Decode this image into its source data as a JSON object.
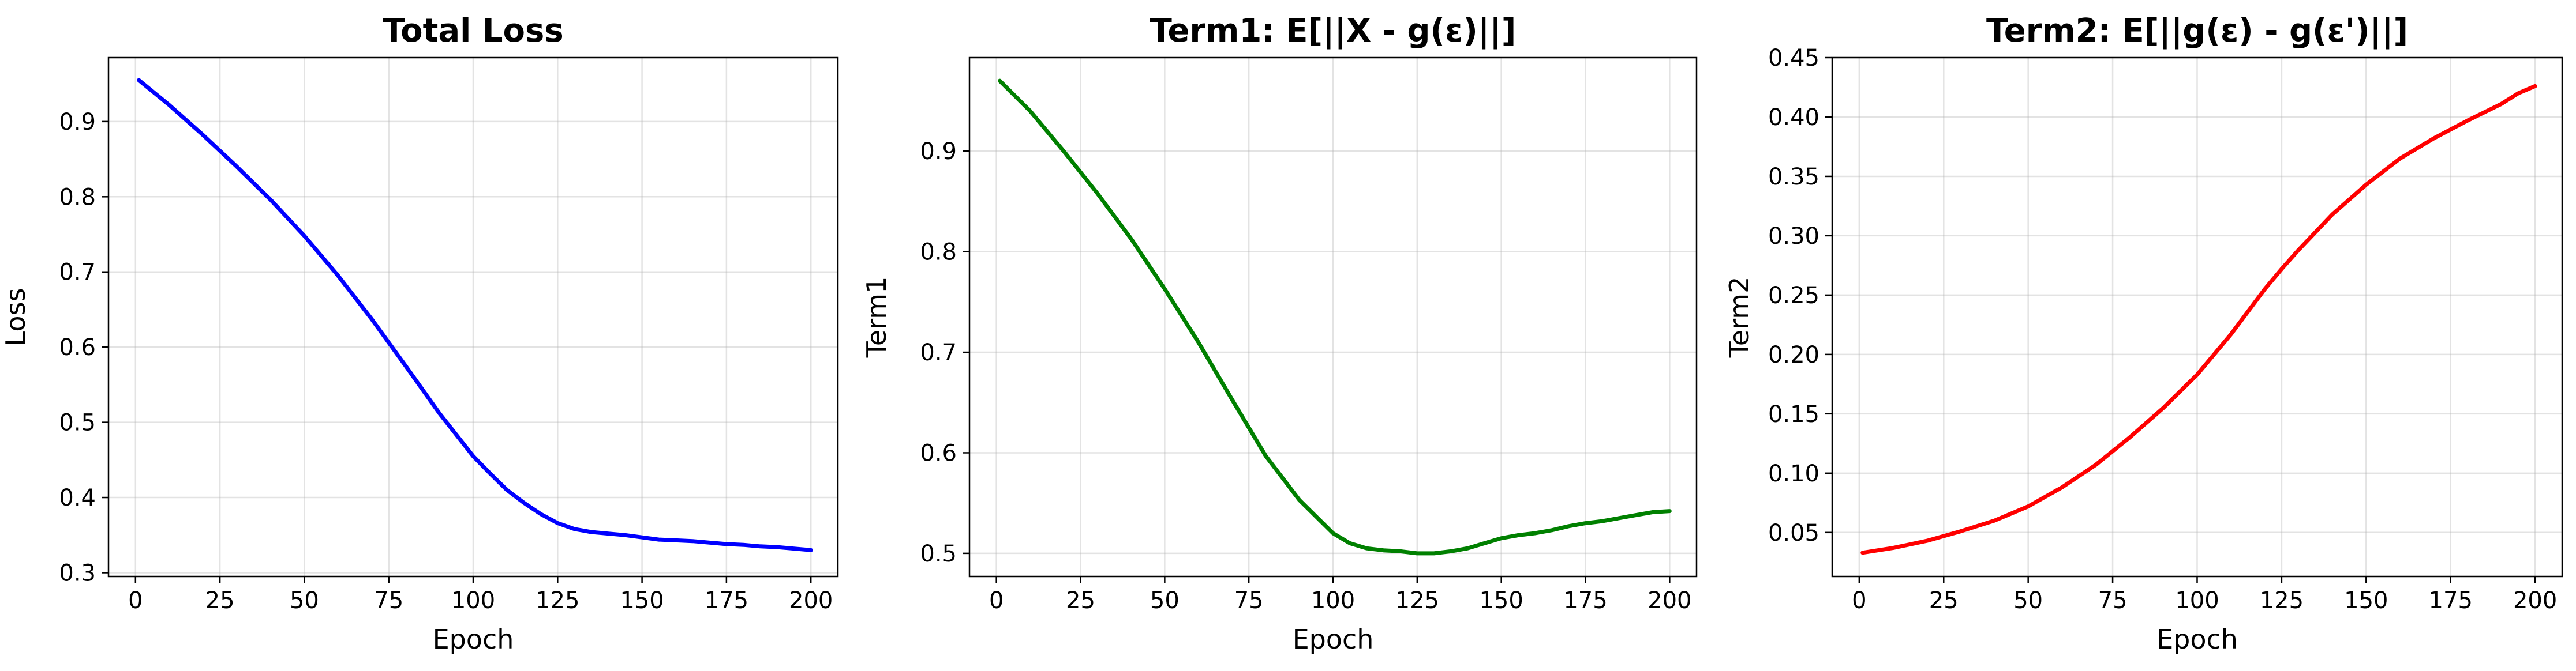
{
  "chart_data": [
    {
      "type": "line",
      "title": "Total Loss",
      "xlabel": "Epoch",
      "ylabel": "Loss",
      "xlim": [
        -8,
        208
      ],
      "ylim": [
        0.295,
        0.985
      ],
      "xticks": [
        0,
        25,
        50,
        75,
        100,
        125,
        150,
        175,
        200
      ],
      "yticks": [
        0.3,
        0.4,
        0.5,
        0.6,
        0.7,
        0.8,
        0.9
      ],
      "ytick_labels": [
        "0.3",
        "0.4",
        "0.5",
        "0.6",
        "0.7",
        "0.8",
        "0.9"
      ],
      "grid": true,
      "series": [
        {
          "color": "#0000ff",
          "x": [
            1,
            10,
            20,
            30,
            40,
            50,
            60,
            70,
            80,
            90,
            100,
            105,
            110,
            115,
            120,
            125,
            130,
            135,
            140,
            145,
            150,
            155,
            160,
            165,
            170,
            175,
            180,
            185,
            190,
            195,
            200
          ],
          "values": [
            0.955,
            0.922,
            0.882,
            0.84,
            0.796,
            0.748,
            0.695,
            0.637,
            0.575,
            0.512,
            0.455,
            0.432,
            0.41,
            0.393,
            0.378,
            0.366,
            0.358,
            0.354,
            0.352,
            0.35,
            0.347,
            0.344,
            0.343,
            0.342,
            0.34,
            0.338,
            0.337,
            0.335,
            0.334,
            0.332,
            0.33
          ]
        }
      ]
    },
    {
      "type": "line",
      "title": "Term1: E[||X - g(ε)||]",
      "xlabel": "Epoch",
      "ylabel": "Term1",
      "xlim": [
        -8,
        208
      ],
      "ylim": [
        0.477,
        0.993
      ],
      "xticks": [
        0,
        25,
        50,
        75,
        100,
        125,
        150,
        175,
        200
      ],
      "yticks": [
        0.5,
        0.6,
        0.7,
        0.8,
        0.9
      ],
      "ytick_labels": [
        "0.5",
        "0.6",
        "0.7",
        "0.8",
        "0.9"
      ],
      "grid": true,
      "series": [
        {
          "color": "#008000",
          "x": [
            1,
            10,
            20,
            30,
            40,
            50,
            60,
            70,
            80,
            90,
            100,
            105,
            110,
            115,
            120,
            125,
            130,
            135,
            140,
            145,
            150,
            155,
            160,
            165,
            170,
            175,
            180,
            185,
            190,
            195,
            200
          ],
          "values": [
            0.97,
            0.94,
            0.9,
            0.858,
            0.813,
            0.763,
            0.71,
            0.653,
            0.597,
            0.553,
            0.52,
            0.51,
            0.505,
            0.503,
            0.502,
            0.5,
            0.5,
            0.502,
            0.505,
            0.51,
            0.515,
            0.518,
            0.52,
            0.523,
            0.527,
            0.53,
            0.532,
            0.535,
            0.538,
            0.541,
            0.542
          ]
        }
      ]
    },
    {
      "type": "line",
      "title": "Term2: E[||g(ε) - g(ε')||]",
      "xlabel": "Epoch",
      "ylabel": "Term2",
      "xlim": [
        -8,
        208
      ],
      "ylim": [
        0.013,
        0.45
      ],
      "xticks": [
        0,
        25,
        50,
        75,
        100,
        125,
        150,
        175,
        200
      ],
      "yticks": [
        0.05,
        0.1,
        0.15,
        0.2,
        0.25,
        0.3,
        0.35,
        0.4,
        0.45
      ],
      "ytick_labels": [
        "0.05",
        "0.10",
        "0.15",
        "0.20",
        "0.25",
        "0.30",
        "0.35",
        "0.40",
        "0.45"
      ],
      "grid": true,
      "series": [
        {
          "color": "#ff0000",
          "x": [
            1,
            10,
            20,
            30,
            40,
            50,
            60,
            70,
            80,
            90,
            100,
            110,
            120,
            125,
            130,
            140,
            150,
            160,
            170,
            180,
            190,
            195,
            200
          ],
          "values": [
            0.033,
            0.037,
            0.043,
            0.051,
            0.06,
            0.072,
            0.088,
            0.107,
            0.13,
            0.155,
            0.183,
            0.217,
            0.255,
            0.272,
            0.288,
            0.318,
            0.343,
            0.365,
            0.382,
            0.397,
            0.411,
            0.42,
            0.426
          ]
        }
      ]
    }
  ]
}
